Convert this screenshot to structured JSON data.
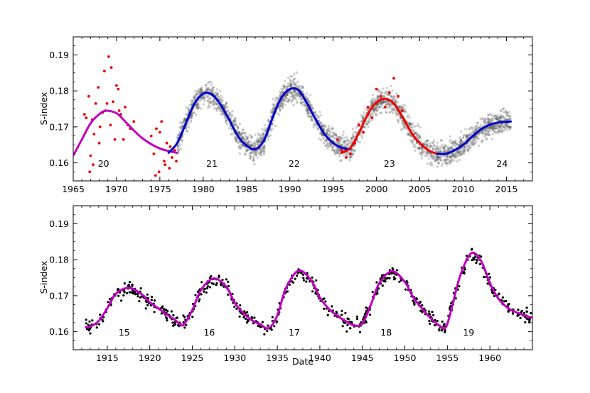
{
  "chart_data": [
    {
      "type": "scatter",
      "panel": "top",
      "ylabel": "S-index",
      "xlabel": "",
      "xlim": [
        1965,
        2018
      ],
      "ylim": [
        0.155,
        0.195
      ],
      "x_ticks": [
        1965,
        1970,
        1975,
        1980,
        1985,
        1990,
        1995,
        2000,
        2005,
        2010,
        2015
      ],
      "y_ticks": [
        0.16,
        0.17,
        0.18,
        0.19
      ],
      "cycle_labels": [
        {
          "text": "20",
          "x": 1968.5,
          "y": 0.1589
        },
        {
          "text": "21",
          "x": 1981.0,
          "y": 0.1589
        },
        {
          "text": "22",
          "x": 1990.5,
          "y": 0.1589
        },
        {
          "text": "23",
          "x": 2001.5,
          "y": 0.1589
        },
        {
          "text": "24",
          "x": 2014.5,
          "y": 0.1589
        }
      ],
      "series": [
        {
          "name": "fit-magenta",
          "color": "#bf00bf",
          "kind": "line",
          "x": [
            1965,
            1966,
            1967,
            1968,
            1968.8,
            1970,
            1971,
            1972,
            1973,
            1974,
            1975,
            1976,
            1977
          ],
          "y": [
            0.162,
            0.1665,
            0.171,
            0.1735,
            0.1745,
            0.1738,
            0.1715,
            0.169,
            0.1668,
            0.1652,
            0.164,
            0.1633,
            0.1628
          ]
        },
        {
          "name": "fit-blue-1",
          "color": "#0000cc",
          "kind": "line",
          "x": [
            1976,
            1977,
            1978,
            1979,
            1980,
            1981,
            1982,
            1983,
            1984,
            1985,
            1986,
            1987,
            1988,
            1989,
            1990,
            1991,
            1992,
            1993,
            1994,
            1995,
            1996,
            1997
          ],
          "y": [
            0.1628,
            0.1655,
            0.171,
            0.1765,
            0.1792,
            0.179,
            0.1762,
            0.172,
            0.1675,
            0.1648,
            0.1638,
            0.1662,
            0.1725,
            0.178,
            0.1805,
            0.1802,
            0.1765,
            0.172,
            0.168,
            0.1655,
            0.1642,
            0.1638
          ]
        },
        {
          "name": "fit-red",
          "color": "#ee0000",
          "kind": "line",
          "x": [
            1996,
            1997,
            1998,
            1999,
            2000,
            2001,
            2002,
            2003,
            2004,
            2005,
            2006,
            2007
          ],
          "y": [
            0.1628,
            0.1642,
            0.1685,
            0.1735,
            0.1768,
            0.1778,
            0.1765,
            0.1728,
            0.1685,
            0.1655,
            0.1635,
            0.1625
          ]
        },
        {
          "name": "fit-blue-2",
          "color": "#0000cc",
          "kind": "line",
          "x": [
            2007,
            2008,
            2009,
            2010,
            2011,
            2012,
            2013,
            2014,
            2015.5
          ],
          "y": [
            0.1625,
            0.1625,
            0.1635,
            0.165,
            0.1672,
            0.1692,
            0.1705,
            0.1712,
            0.1715
          ]
        },
        {
          "name": "red-observations",
          "color": "#ee0000",
          "kind": "points",
          "x": [
            1966.3,
            1966.5,
            1966.8,
            1967.0,
            1967.2,
            1967.4,
            1967.6,
            1967.9,
            1968.1,
            1968.4,
            1968.6,
            1968.9,
            1969.1,
            1969.3,
            1969.6,
            1969.8,
            1970.0,
            1970.3,
            1970.5,
            1970.8,
            1971.0,
            1971.3,
            1971.6,
            1972.0,
            1966.9,
            1967.3,
            1968.0,
            1968.7,
            1969.4,
            1970.2,
            1974.0,
            1974.3,
            1974.6,
            1974.9,
            1975.2,
            1975.5,
            1975.8,
            1976.1,
            1976.4,
            1976.7,
            1974.5,
            1975.0,
            1975.6,
            1976.2,
            1976.9,
            1995.5,
            1996.0,
            1996.5,
            1997.0,
            1997.5,
            1998.0,
            1998.5,
            1999.0,
            1999.5,
            2000.0,
            2000.5,
            2001.0,
            2001.5,
            2002.0,
            2002.5,
            2003.0
          ],
          "y": [
            0.1735,
            0.1725,
            0.1785,
            0.162,
            0.172,
            0.168,
            0.1765,
            0.181,
            0.17,
            0.174,
            0.1855,
            0.1765,
            0.1895,
            0.1705,
            0.177,
            0.1665,
            0.1815,
            0.1745,
            0.1735,
            0.1665,
            0.1755,
            0.1705,
            0.1695,
            0.1715,
            0.1575,
            0.1595,
            0.1655,
            0.1745,
            0.1865,
            0.1805,
            0.1675,
            0.1625,
            0.1695,
            0.1575,
            0.1715,
            0.1605,
            0.1655,
            0.1585,
            0.1615,
            0.1635,
            0.1565,
            0.1685,
            0.1595,
            0.1645,
            0.1605,
            0.1665,
            0.1635,
            0.1615,
            0.1625,
            0.1655,
            0.1705,
            0.1685,
            0.1755,
            0.1725,
            0.1805,
            0.1785,
            0.1755,
            0.1795,
            0.1835,
            0.1785,
            0.1745
          ]
        },
        {
          "name": "gray-observations",
          "color": "#555555",
          "kind": "noisy-cloud",
          "from": 1977,
          "to": 2015.5,
          "spread": 0.0035,
          "density": 70
        }
      ]
    },
    {
      "type": "scatter",
      "panel": "bottom",
      "ylabel": "S-index",
      "xlabel": "Date",
      "xlim": [
        1911,
        1965
      ],
      "ylim": [
        0.155,
        0.195
      ],
      "x_ticks": [
        1915,
        1920,
        1925,
        1930,
        1935,
        1940,
        1945,
        1950,
        1955,
        1960
      ],
      "y_ticks": [
        0.16,
        0.17,
        0.18,
        0.19
      ],
      "cycle_labels": [
        {
          "text": "15",
          "x": 1917.0,
          "y": 0.1589
        },
        {
          "text": "16",
          "x": 1927.0,
          "y": 0.1589
        },
        {
          "text": "17",
          "x": 1937.0,
          "y": 0.1589
        },
        {
          "text": "18",
          "x": 1947.8,
          "y": 0.1589
        },
        {
          "text": "19",
          "x": 1957.5,
          "y": 0.1589
        }
      ],
      "series": [
        {
          "name": "fit-magenta",
          "color": "#bf00bf",
          "kind": "line",
          "x": [
            1912.5,
            1913,
            1914,
            1915,
            1916,
            1917.5,
            1919,
            1920,
            1921,
            1922,
            1923,
            1923.5,
            1924,
            1925,
            1926,
            1927.5,
            1929,
            1930,
            1931,
            1932,
            1933,
            1934,
            1935,
            1936,
            1937.5,
            1939,
            1940,
            1941,
            1942,
            1943,
            1944,
            1945,
            1946,
            1947,
            1948.5,
            1950,
            1951,
            1952,
            1953,
            1954,
            1954.8,
            1955.5,
            1956.5,
            1957.8,
            1959,
            1960,
            1961,
            1962,
            1963,
            1965
          ],
          "y": [
            0.1612,
            0.1614,
            0.163,
            0.1665,
            0.1705,
            0.1722,
            0.1705,
            0.1682,
            0.1665,
            0.1648,
            0.1632,
            0.1622,
            0.162,
            0.166,
            0.1715,
            0.1748,
            0.1725,
            0.168,
            0.1652,
            0.1632,
            0.162,
            0.161,
            0.1645,
            0.172,
            0.177,
            0.1742,
            0.1695,
            0.1665,
            0.1645,
            0.163,
            0.1618,
            0.1622,
            0.1675,
            0.1735,
            0.1768,
            0.1738,
            0.1695,
            0.1665,
            0.1638,
            0.1618,
            0.1612,
            0.1665,
            0.1755,
            0.1818,
            0.1795,
            0.1735,
            0.1692,
            0.1668,
            0.1655,
            0.1638
          ]
        },
        {
          "name": "black-observations",
          "color": "#000000",
          "kind": "noisy-cloud",
          "from": 1911,
          "to": 1965,
          "spread": 0.0022,
          "density": 12
        }
      ]
    }
  ]
}
